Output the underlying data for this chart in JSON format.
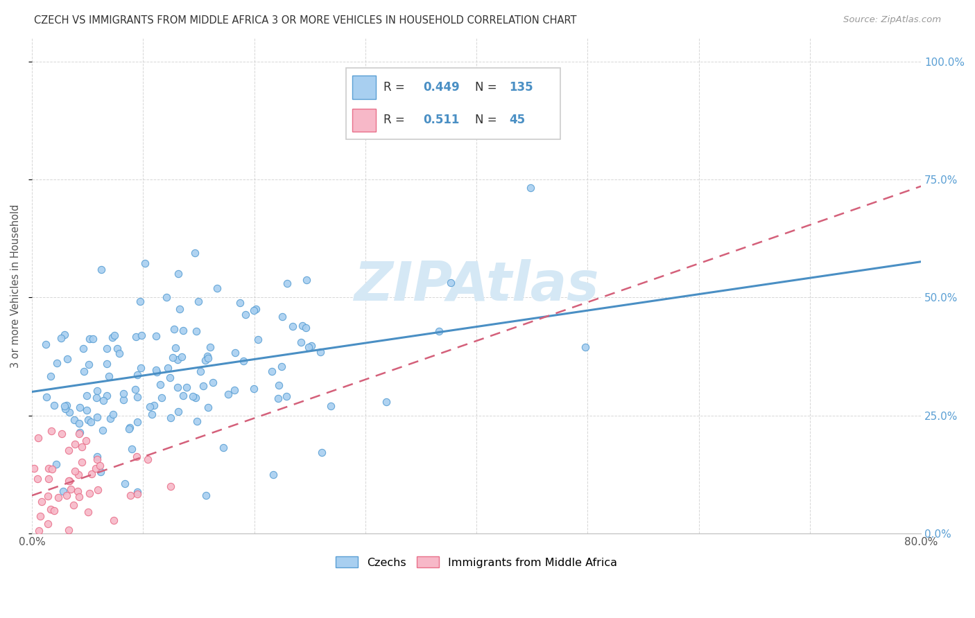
{
  "title": "CZECH VS IMMIGRANTS FROM MIDDLE AFRICA 3 OR MORE VEHICLES IN HOUSEHOLD CORRELATION CHART",
  "source": "Source: ZipAtlas.com",
  "ylabel_label": "3 or more Vehicles in Household",
  "legend_blue_label": "Czechs",
  "legend_pink_label": "Immigrants from Middle Africa",
  "R_blue": 0.449,
  "N_blue": 135,
  "R_pink": 0.511,
  "N_pink": 45,
  "blue_color": "#a8cff0",
  "pink_color": "#f7b8c8",
  "blue_edge_color": "#5a9fd4",
  "pink_edge_color": "#e8708a",
  "blue_line_color": "#4a8fc4",
  "pink_line_color": "#d4607a",
  "title_color": "#333333",
  "source_color": "#999999",
  "watermark_color": "#d5e8f5",
  "right_tick_color": "#5a9fd4",
  "x_min": 0.0,
  "x_max": 0.8,
  "y_min": 0.0,
  "y_max": 1.05,
  "blue_intercept": 0.3,
  "blue_slope": 0.345,
  "pink_intercept": 0.08,
  "pink_slope": 0.82,
  "blue_seed": 42,
  "pink_seed": 17
}
